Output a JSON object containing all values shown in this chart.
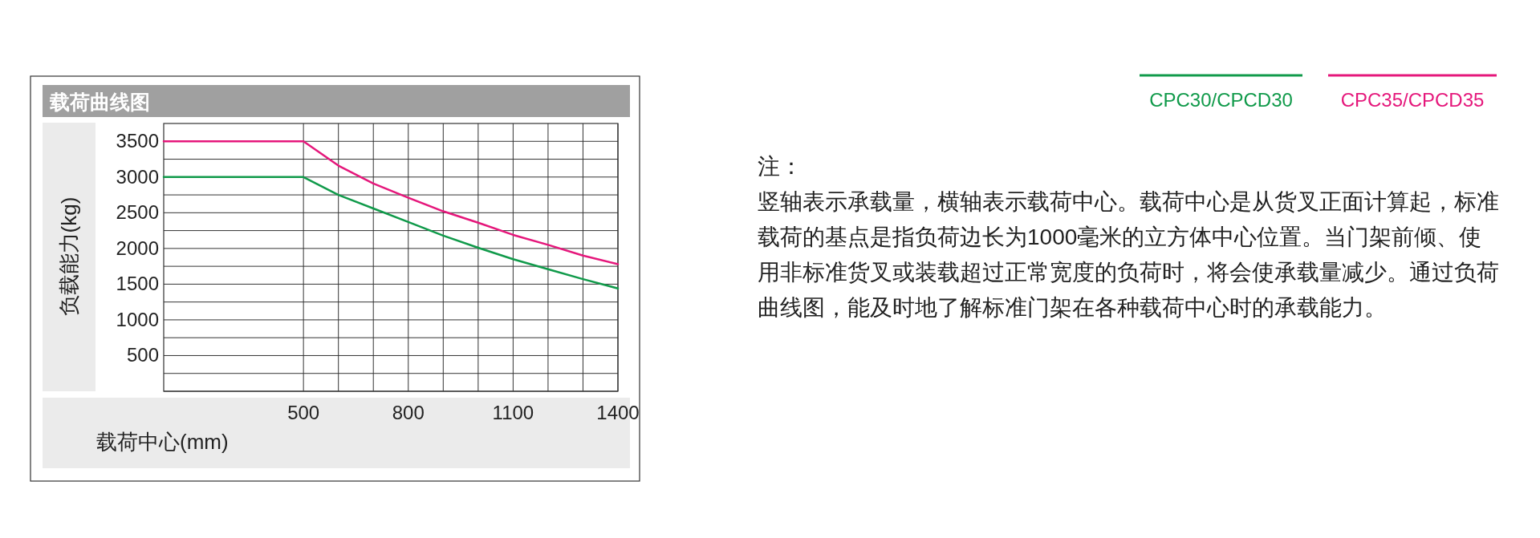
{
  "chart_data": {
    "type": "line",
    "title": "载荷曲线图",
    "xlabel": "载荷中心(mm)",
    "ylabel": "负载能力(kg)",
    "xlim": [
      100,
      1400
    ],
    "xticks": [
      500,
      {
        "value": 600,
        "label": null
      },
      {
        "value": 700,
        "label": null
      },
      800,
      {
        "value": 900,
        "label": null
      },
      {
        "value": 1000,
        "label": null
      },
      1100,
      {
        "value": 1200,
        "label": null
      },
      {
        "value": 1300,
        "label": null
      },
      1400
    ],
    "ylim": [
      0,
      3750
    ],
    "yticks": [
      {
        "value": 0,
        "label": null
      },
      {
        "value": 250,
        "label": null
      },
      500,
      {
        "value": 750,
        "label": null
      },
      1000,
      {
        "value": 1250,
        "label": null
      },
      1500,
      {
        "value": 1750,
        "label": null
      },
      2000,
      {
        "value": 2250,
        "label": null
      },
      2500,
      {
        "value": 2750,
        "label": null
      },
      3000,
      {
        "value": 3250,
        "label": null
      },
      3500
    ],
    "grid": true,
    "legend": "top right",
    "marker": "none",
    "line_style": "solid",
    "x": [
      100,
      500,
      600,
      700,
      800,
      900,
      1000,
      1100,
      1200,
      1300,
      1400
    ],
    "series": [
      {
        "name": "CPC30/CPCD30",
        "color": "#109a4a",
        "values": [
          3000,
          3000,
          2750,
          2560,
          2370,
          2180,
          2010,
          1850,
          1710,
          1570,
          1440
        ]
      },
      {
        "name": "CPC35/CPCD35",
        "color": "#e5177b",
        "values": [
          3500,
          3500,
          3160,
          2910,
          2710,
          2520,
          2360,
          2190,
          2050,
          1900,
          1780
        ]
      }
    ],
    "annotations": [
      "注：",
      "竖轴表示承载量，横轴表示载荷中心。载荷中心是从货叉正面计算起，标准载荷的基点是指负荷边长为1000毫米的立方体中心位置。当门架前倾、使用非标准货叉或装载超过正常宽度的负荷时，将会使承载量减少。通过负荷曲线图，能及时地了解标准门架在各种载荷中心时的承载能力。"
    ]
  }
}
